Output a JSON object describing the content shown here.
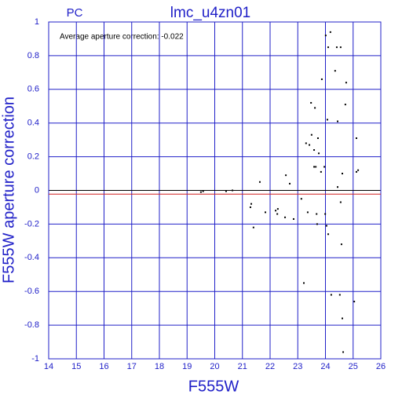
{
  "chart_data": {
    "type": "scatter",
    "title": "lmc_u4zn01",
    "subtitle": "PC",
    "annotation": "Average aperture correction: -0.022",
    "reference_line": -0.022,
    "x_label": "F555W",
    "y_label": "F555W aperture correction",
    "xlim": [
      14,
      26
    ],
    "ylim": [
      -1,
      1
    ],
    "xticks": [
      14,
      15,
      16,
      17,
      18,
      19,
      20,
      21,
      22,
      23,
      24,
      25,
      26
    ],
    "yticks": [
      -1,
      -0.8,
      -0.6,
      -0.4,
      -0.2,
      0,
      0.2,
      0.4,
      0.6,
      0.8,
      1
    ],
    "grid": true,
    "color": "#000000",
    "x": [
      19.5,
      19.58,
      20.41,
      20.64,
      21.32,
      21.29,
      21.4,
      21.63,
      21.83,
      22.2,
      22.28,
      22.26,
      22.54,
      22.57,
      22.71,
      22.85,
      23.13,
      23.22,
      23.3,
      23.36,
      23.42,
      23.48,
      23.5,
      23.59,
      23.62,
      23.59,
      23.65,
      23.68,
      23.7,
      23.73,
      23.76,
      23.84,
      23.87,
      23.96,
      23.99,
      24.04,
      24.01,
      24.1,
      24.1,
      24.07,
      24.18,
      24.21,
      24.35,
      24.41,
      24.44,
      24.44,
      24.52,
      24.55,
      24.55,
      24.58,
      24.61,
      24.61,
      24.64,
      24.75,
      24.72,
      25.04,
      25.12,
      25.18,
      25.12
    ],
    "y": [
      -0.01,
      -0.005,
      -0.005,
      0.0,
      -0.08,
      -0.1,
      -0.22,
      0.05,
      -0.13,
      -0.12,
      -0.11,
      -0.14,
      -0.16,
      0.09,
      0.04,
      -0.17,
      -0.05,
      -0.55,
      0.28,
      -0.13,
      0.27,
      0.52,
      0.33,
      0.24,
      0.49,
      0.14,
      0.14,
      -0.14,
      -0.2,
      0.31,
      0.22,
      0.11,
      0.66,
      0.14,
      -0.14,
      -0.21,
      0.92,
      -0.26,
      0.85,
      0.42,
      0.94,
      -0.62,
      0.71,
      0.85,
      0.41,
      0.02,
      -0.62,
      -0.07,
      0.85,
      -0.32,
      0.1,
      -0.76,
      -0.96,
      0.64,
      0.51,
      -0.66,
      0.11,
      0.12,
      0.31
    ]
  }
}
